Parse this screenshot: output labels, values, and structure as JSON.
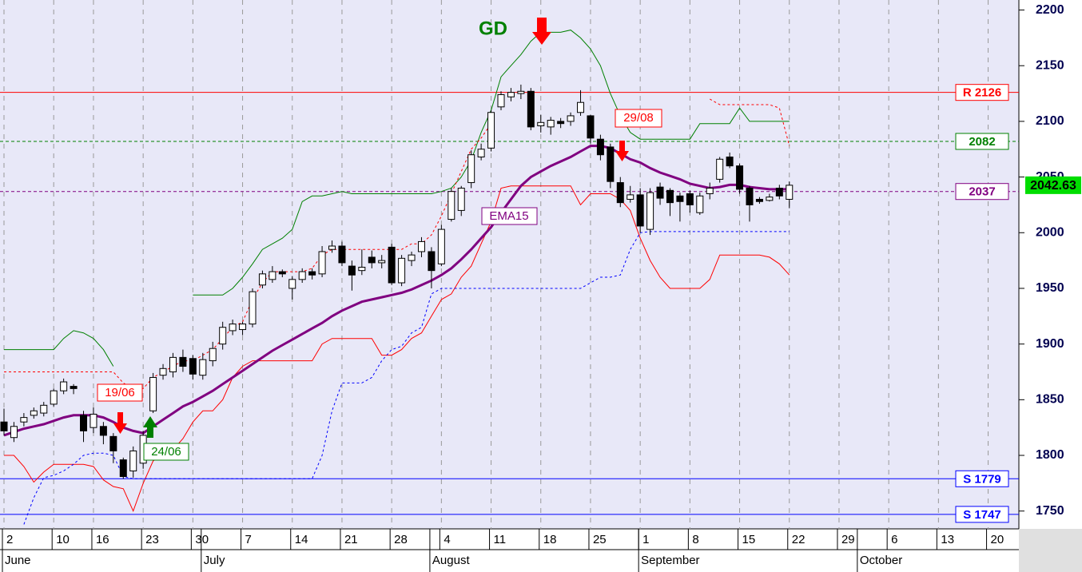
{
  "chart_data": {
    "type": "candlestick",
    "categories": [
      "2",
      null,
      null,
      null,
      null,
      "10",
      null,
      null,
      null,
      "16",
      null,
      null,
      null,
      null,
      "23",
      null,
      null,
      null,
      null,
      "30",
      null,
      null,
      null,
      null,
      "7",
      null,
      null,
      null,
      null,
      "14",
      null,
      null,
      null,
      null,
      "21",
      null,
      null,
      null,
      null,
      "28",
      null,
      null,
      null,
      null,
      "4",
      null,
      null,
      null,
      null,
      "11",
      null,
      null,
      null,
      null,
      "18",
      null,
      null,
      null,
      null,
      "25",
      null,
      null,
      null,
      null,
      "1",
      null,
      null,
      null,
      null,
      "8",
      null,
      null,
      null,
      null,
      "15",
      null,
      null,
      null,
      null,
      "22",
      null,
      null,
      null,
      null,
      "29",
      null,
      null,
      null,
      null,
      "6",
      null,
      null,
      null,
      null,
      "13",
      null,
      null,
      null,
      null,
      "20",
      null,
      null,
      null
    ],
    "month_labels": [
      "June",
      null,
      null,
      null,
      null,
      null,
      null,
      null,
      null,
      null,
      null,
      null,
      null,
      null,
      null,
      null,
      null,
      null,
      null,
      null,
      "July",
      null,
      null,
      null,
      null,
      null,
      null,
      null,
      null,
      null,
      null,
      null,
      null,
      null,
      null,
      null,
      null,
      null,
      null,
      null,
      null,
      null,
      null,
      "August",
      null,
      null,
      null,
      null,
      null,
      null,
      null,
      null,
      null,
      null,
      null,
      null,
      null,
      null,
      null,
      null,
      null,
      null,
      null,
      null,
      "September",
      null,
      null,
      null,
      null,
      null,
      null,
      null,
      null,
      null,
      null,
      null,
      null,
      null,
      null,
      null,
      null,
      null,
      null,
      null,
      null,
      null,
      "October",
      null,
      null,
      null,
      null,
      null,
      null,
      null,
      null,
      null,
      null,
      null,
      null,
      null,
      null,
      null,
      null
    ],
    "open": [
      1830,
      1816,
      1830,
      1836,
      1838,
      1846,
      1858,
      1862,
      1836,
      1825,
      1826,
      1817,
      1796,
      1786,
      1793,
      1840,
      1872,
      1875,
      1888,
      1887,
      1872,
      1885,
      1900,
      1912,
      1913,
      1918,
      1953,
      1958,
      1965,
      1950,
      1958,
      1965,
      1963,
      1985,
      1988,
      1970,
      1966,
      1978,
      1973,
      1987,
      1955,
      1975,
      1983,
      1983,
      1972,
      2012,
      2020,
      2045,
      2068,
      2076,
      2113,
      2122,
      2125,
      2127,
      2096,
      2095,
      2100,
      2100,
      2108,
      2105,
      2084,
      2077,
      2045,
      2030,
      2034,
      2003,
      2041,
      2038,
      2033,
      2035,
      2018,
      2035,
      2048,
      2068,
      2060,
      2040,
      2030,
      2029,
      2040,
      2030,
      null,
      null,
      null,
      null,
      null,
      null,
      null,
      null,
      null,
      null,
      null,
      null,
      null,
      null,
      null,
      null,
      null,
      null,
      null,
      null,
      null,
      null,
      null
    ],
    "high": [
      1842,
      1830,
      1838,
      1843,
      1848,
      1860,
      1869,
      1864,
      1840,
      1843,
      1830,
      1820,
      1798,
      1808,
      1822,
      1874,
      1882,
      1892,
      1895,
      1890,
      1892,
      1902,
      1920,
      1922,
      1920,
      1950,
      1966,
      1970,
      1967,
      1961,
      1968,
      1968,
      1988,
      1993,
      1992,
      1975,
      1985,
      1984,
      1980,
      1990,
      1980,
      1983,
      1996,
      1987,
      2007,
      2040,
      2042,
      2074,
      2080,
      2110,
      2127,
      2130,
      2133,
      2130,
      2106,
      2104,
      2103,
      2108,
      2128,
      2106,
      2088,
      2080,
      2050,
      2042,
      2040,
      2040,
      2045,
      2040,
      2036,
      2038,
      2036,
      2045,
      2068,
      2072,
      2062,
      2042,
      2032,
      2035,
      2043,
      2046,
      null,
      null,
      null,
      null,
      null,
      null,
      null,
      null,
      null,
      null,
      null,
      null,
      null,
      null,
      null,
      null,
      null,
      null,
      null,
      null,
      null,
      null,
      null
    ],
    "low": [
      1818,
      1812,
      1826,
      1833,
      1835,
      1844,
      1855,
      1855,
      1812,
      1820,
      1810,
      1793,
      1779,
      1780,
      1788,
      1838,
      1868,
      1870,
      1875,
      1868,
      1868,
      1880,
      1895,
      1908,
      1908,
      1915,
      1950,
      1955,
      1960,
      1940,
      1955,
      1958,
      1960,
      1982,
      1970,
      1948,
      1962,
      1968,
      1968,
      1953,
      1952,
      1970,
      1978,
      1950,
      1970,
      2010,
      2015,
      2040,
      2065,
      2073,
      2110,
      2118,
      2120,
      2092,
      2090,
      2088,
      2094,
      2096,
      2105,
      2080,
      2065,
      2040,
      2023,
      2027,
      2000,
      1998,
      2025,
      2015,
      2010,
      2018,
      2016,
      2030,
      2045,
      2058,
      2035,
      2010,
      2026,
      2028,
      2030,
      2022,
      null,
      null,
      null,
      null,
      null,
      null,
      null,
      null,
      null,
      null,
      null,
      null,
      null,
      null,
      null,
      null,
      null,
      null,
      null,
      null,
      null,
      null,
      null
    ],
    "close": [
      1822,
      1826,
      1834,
      1840,
      1845,
      1858,
      1866,
      1860,
      1822,
      1837,
      1818,
      1804,
      1781,
      1804,
      1818,
      1870,
      1878,
      1888,
      1880,
      1873,
      1886,
      1896,
      1915,
      1918,
      1918,
      1947,
      1963,
      1965,
      1963,
      1958,
      1965,
      1962,
      1983,
      1988,
      1973,
      1962,
      1969,
      1973,
      1975,
      1955,
      1977,
      1980,
      1992,
      1966,
      2003,
      2037,
      2040,
      2070,
      2075,
      2108,
      2124,
      2126,
      2127,
      2095,
      2099,
      2101,
      2098,
      2105,
      2117,
      2085,
      2070,
      2046,
      2027,
      2034,
      2006,
      2036,
      2031,
      2027,
      2028,
      2025,
      2033,
      2040,
      2066,
      2060,
      2039,
      2025,
      2028,
      2032,
      2033,
      2042.63,
      null,
      null,
      null,
      null,
      null,
      null,
      null,
      null,
      null,
      null,
      null,
      null,
      null,
      null,
      null,
      null,
      null,
      null,
      null,
      null,
      null,
      null,
      null
    ],
    "series": [
      {
        "color": "#008000",
        "dash": false,
        "width": 1,
        "values": [
          1895,
          1895,
          1895,
          1895,
          1895,
          1895,
          1905,
          1912,
          1910,
          1905,
          1895,
          1880,
          null,
          null,
          null,
          null,
          null,
          null,
          null,
          1944,
          1944,
          1944,
          1944,
          1950,
          1960,
          1972,
          1985,
          1990,
          1995,
          2003,
          2028,
          2033,
          2033,
          2035,
          2037,
          2035,
          2035,
          2035,
          2035,
          2035,
          2035,
          2035,
          2035,
          2035,
          2037,
          2040,
          2050,
          2065,
          2090,
          2110,
          2140,
          2150,
          2160,
          2172,
          2180,
          2180,
          2180,
          2182,
          2175,
          2165,
          2150,
          2125,
          2105,
          2090,
          2084,
          2084,
          2084,
          2084,
          2084,
          2084,
          2098,
          2098,
          2098,
          2098,
          2112,
          2100,
          2100,
          2100,
          2100,
          2100,
          null,
          null,
          null,
          null,
          null,
          null,
          null,
          null,
          null,
          null,
          null,
          null,
          null,
          null,
          null,
          null,
          null,
          null,
          null,
          null,
          null,
          null,
          null
        ]
      },
      {
        "color": "#ff0000",
        "dash": false,
        "width": 1,
        "values": [
          1800,
          1800,
          1790,
          1776,
          1785,
          1792,
          1792,
          1792,
          1792,
          1790,
          1778,
          1772,
          1770,
          1750,
          1775,
          1795,
          1800,
          1805,
          1815,
          1830,
          1840,
          1840,
          1850,
          1870,
          1880,
          1885,
          1885,
          1885,
          1885,
          1885,
          1885,
          1885,
          1900,
          1905,
          1905,
          1905,
          1905,
          1905,
          1890,
          1890,
          1895,
          1905,
          1910,
          1925,
          1940,
          1945,
          1960,
          1970,
          1990,
          2010,
          2040,
          2042,
          2042,
          2042,
          2042,
          2042,
          2042,
          2042,
          2025,
          2035,
          2035,
          2035,
          2030,
          2020,
          1995,
          1975,
          1960,
          1950,
          1950,
          1950,
          1950,
          1958,
          1980,
          1980,
          1980,
          1980,
          1980,
          1978,
          1972,
          1962,
          null,
          null,
          null,
          null,
          null,
          null,
          null,
          null,
          null,
          null,
          null,
          null,
          null,
          null,
          null,
          null,
          null,
          null,
          null,
          null,
          null,
          null,
          null
        ]
      },
      {
        "color": "#ff0000",
        "dash": true,
        "width": 1,
        "values": [
          1875,
          1875,
          1875,
          1875,
          1875,
          1875,
          1875,
          1875,
          1875,
          1875,
          1875,
          1875,
          1865,
          1860,
          1860,
          1870,
          1875,
          1880,
          1885,
          1885,
          1890,
          1895,
          1905,
          1915,
          1920,
          1940,
          1955,
          1965,
          1965,
          1965,
          1965,
          1968,
          1980,
          1985,
          1985,
          1985,
          1985,
          1985,
          1985,
          1985,
          1985,
          1990,
          1990,
          1998,
          2015,
          2035,
          2055,
          2075,
          2085,
          2098,
          null,
          null,
          null,
          null,
          null,
          null,
          null,
          null,
          null,
          null,
          null,
          null,
          null,
          null,
          null,
          null,
          null,
          null,
          null,
          null,
          null,
          2120,
          2115,
          2115,
          2115,
          2115,
          2115,
          2115,
          2112,
          2078,
          null,
          null,
          null,
          null,
          null,
          null,
          null,
          null,
          null,
          null,
          null,
          null,
          null,
          null,
          null,
          null,
          null,
          null,
          null,
          null,
          null,
          null,
          null
        ]
      },
      {
        "color": "#0000ff",
        "dash": true,
        "width": 1,
        "values": [
          null,
          null,
          1738,
          1762,
          1780,
          1782,
          1786,
          1792,
          1800,
          1802,
          1802,
          1800,
          1781,
          1779,
          1779,
          1779,
          1779,
          1779,
          1779,
          1779,
          1779,
          1779,
          1779,
          1779,
          1779,
          1779,
          1779,
          1779,
          1779,
          1779,
          1779,
          1779,
          1800,
          1840,
          1865,
          1865,
          1865,
          1870,
          1885,
          1895,
          1898,
          1910,
          1915,
          1945,
          1950,
          1950,
          1950,
          1950,
          1950,
          1950,
          1950,
          1950,
          1950,
          1950,
          1950,
          1950,
          1950,
          1950,
          1950,
          1955,
          1960,
          1960,
          1962,
          1985,
          2000,
          2001,
          2001,
          2001,
          2001,
          2001,
          2001,
          2001,
          2001,
          2001,
          2001,
          2001,
          2001,
          2001,
          2001,
          2001,
          null,
          null,
          null,
          null,
          null,
          null,
          null,
          null,
          null,
          null,
          null,
          null,
          null,
          null,
          null,
          null,
          null,
          null,
          null,
          null,
          null,
          null,
          null
        ]
      },
      {
        "name": "EMA15",
        "color": "#800080",
        "dash": false,
        "width": 3,
        "values": [
          1818,
          1821,
          1824,
          1826,
          1828,
          1831,
          1834,
          1836,
          1836,
          1836,
          1834,
          1830,
          1825,
          1822,
          1820,
          1826,
          1832,
          1838,
          1844,
          1848,
          1853,
          1858,
          1864,
          1870,
          1876,
          1882,
          1888,
          1894,
          1899,
          1904,
          1909,
          1914,
          1919,
          1925,
          1930,
          1934,
          1938,
          1940,
          1942,
          1944,
          1946,
          1949,
          1953,
          1957,
          1962,
          1968,
          1976,
          1985,
          1995,
          2005,
          2018,
          2030,
          2042,
          2050,
          2055,
          2060,
          2064,
          2068,
          2073,
          2078,
          2078,
          2076,
          2071,
          2066,
          2063,
          2058,
          2054,
          2051,
          2048,
          2044,
          2042,
          2040,
          2041,
          2043,
          2043,
          2041,
          2040,
          2039,
          2039,
          2039,
          null,
          null,
          null,
          null,
          null,
          null,
          null,
          null,
          null,
          null,
          null,
          null,
          null,
          null,
          null,
          null,
          null,
          null,
          null,
          null,
          null,
          null,
          null
        ]
      }
    ],
    "levels": [
      {
        "value": 2126,
        "label": "R 2126",
        "color": "#ff0000",
        "dash": false
      },
      {
        "value": 2082,
        "label": "2082",
        "color": "#008000",
        "dash": true
      },
      {
        "value": 2037,
        "label": "2037",
        "color": "#800080",
        "dash": true
      },
      {
        "value": 1779,
        "label": "S 1779",
        "color": "#0000ff",
        "dash": false
      },
      {
        "value": 1747,
        "label": "S 1747",
        "color": "#0000ff",
        "dash": false
      }
    ],
    "last_price": 2042.63,
    "last_price_color": "#00dd00",
    "annotations": [
      "GD",
      "19/06",
      "24/06",
      "29/08"
    ],
    "ylim": [
      1734,
      2209
    ],
    "yticks": [
      1750,
      1800,
      1850,
      1900,
      1950,
      2000,
      2050,
      2100,
      2150,
      2200
    ],
    "grid": true
  }
}
